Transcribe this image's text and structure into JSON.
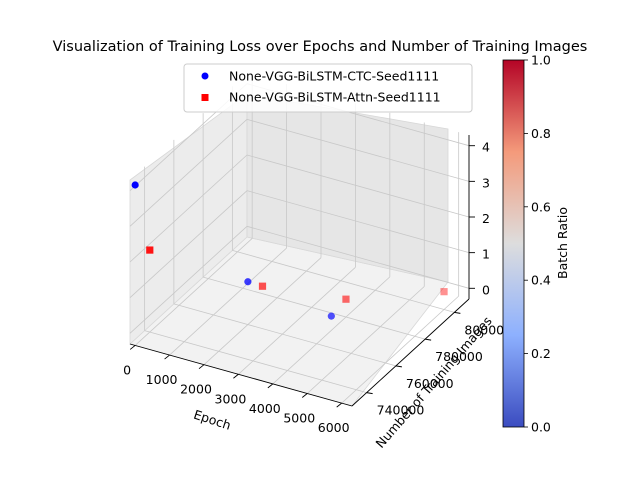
{
  "chart_data": {
    "type": "scatter",
    "projection": "3d",
    "title": "Visualization of Training Loss over Epochs and Number of Training Images",
    "xlabel": "Epoch",
    "ylabel": "Number of Training Images",
    "zlabel": "",
    "xlim": [
      -150,
      6300
    ],
    "ylim": [
      730000,
      810000
    ],
    "zlim": [
      -0.3,
      4.3
    ],
    "xticks": [
      "0",
      "1000",
      "2000",
      "3000",
      "4000",
      "5000",
      "6000"
    ],
    "yticks": [
      "740000",
      "760000",
      "780000",
      "800000"
    ],
    "zticks": [
      "0",
      "1",
      "2",
      "3",
      "4"
    ],
    "grid": true,
    "legend_position": "top",
    "colorbar": {
      "label": "Batch Ratio",
      "range": [
        0,
        1
      ],
      "ticks": [
        "0.0",
        "0.2",
        "0.4",
        "0.6",
        "0.8",
        "1.0"
      ],
      "colormap": "coolwarm"
    },
    "series": [
      {
        "name": "None-VGG-BiLSTM-CTC-Seed1111",
        "marker": "circle",
        "color": "#0000ff",
        "points": [
          {
            "x": 0,
            "y": 730000,
            "z": 4.2
          },
          {
            "x": 2000,
            "y": 760000,
            "z": 0.9
          },
          {
            "x": 4000,
            "y": 770000,
            "z": 0.1
          }
        ]
      },
      {
        "name": "None-VGG-BiLSTM-Attn-Seed1111",
        "marker": "square",
        "color": "#ff0000",
        "points": [
          {
            "x": 0,
            "y": 740000,
            "z": 2.0
          },
          {
            "x": 2000,
            "y": 770000,
            "z": 0.4
          },
          {
            "x": 4000,
            "y": 780000,
            "z": 0.2
          },
          {
            "x": 6000,
            "y": 800000,
            "z": 0.2
          }
        ]
      }
    ]
  }
}
